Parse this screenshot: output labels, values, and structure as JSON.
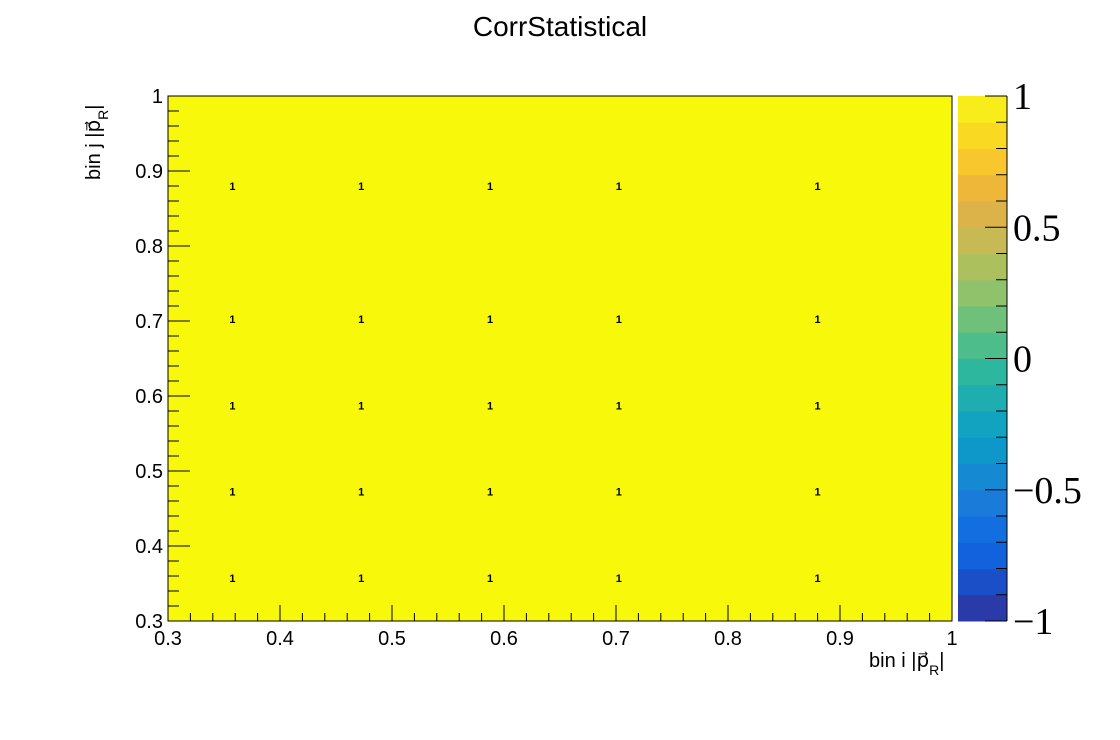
{
  "chart_data": {
    "type": "heatmap",
    "title": "CorrStatistical",
    "xlabel": "bin i |p⃗",
    "xlabel_sub": "R",
    "ylabel": "bin j |p⃗",
    "ylabel_sub": "R",
    "xlim": [
      0.3,
      1.0
    ],
    "ylim": [
      0.3,
      1.0
    ],
    "zlim": [
      -1,
      1
    ],
    "x_edges": [
      0.3,
      0.415,
      0.53,
      0.645,
      0.76,
      1.0
    ],
    "y_edges": [
      0.3,
      0.415,
      0.53,
      0.645,
      0.76,
      1.0
    ],
    "x_centers": [
      0.3575,
      0.4725,
      0.5875,
      0.7025,
      0.88
    ],
    "y_centers": [
      0.3575,
      0.4725,
      0.5875,
      0.7025,
      0.88
    ],
    "values": [
      [
        1,
        1,
        1,
        1,
        1
      ],
      [
        1,
        1,
        1,
        1,
        1
      ],
      [
        1,
        1,
        1,
        1,
        1
      ],
      [
        1,
        1,
        1,
        1,
        1
      ],
      [
        1,
        1,
        1,
        1,
        1
      ]
    ],
    "cell_labels": [
      "1"
    ],
    "x_tick_labels": [
      "0.3",
      "0.4",
      "0.5",
      "0.6",
      "0.7",
      "0.8",
      "0.9",
      "1"
    ],
    "y_tick_labels": [
      "0.3",
      "0.4",
      "0.5",
      "0.6",
      "0.7",
      "0.8",
      "0.9",
      "1"
    ],
    "z_tick_labels": [
      "−1",
      "−0.5",
      "0",
      "0.5",
      "1"
    ],
    "z_tick_values": [
      -1,
      -0.5,
      0,
      0.5,
      1
    ],
    "colorbar_colors": [
      "#2a3aa8",
      "#1a4fc8",
      "#1162dc",
      "#136fe0",
      "#1a7cd8",
      "#1589d1",
      "#0e97c9",
      "#11a3bf",
      "#1eaeb0",
      "#2db79f",
      "#4dbd8c",
      "#6ec07a",
      "#8fc26b",
      "#adc05e",
      "#c7b954",
      "#dbb348",
      "#eeb73a",
      "#f8c62d",
      "#fad923",
      "#f8ed1a"
    ],
    "heat_color": "#f8f80a",
    "grid": false,
    "legend": "colorbar-right"
  }
}
